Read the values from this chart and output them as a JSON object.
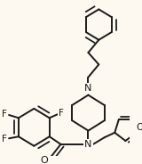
{
  "bg_color": "#fdf8f0",
  "line_color": "#1a1a1a",
  "lw": 1.4,
  "dbo": 0.012,
  "figsize": [
    1.6,
    1.84
  ],
  "dpi": 100,
  "xlim": [
    0,
    160
  ],
  "ylim": [
    0,
    184
  ]
}
